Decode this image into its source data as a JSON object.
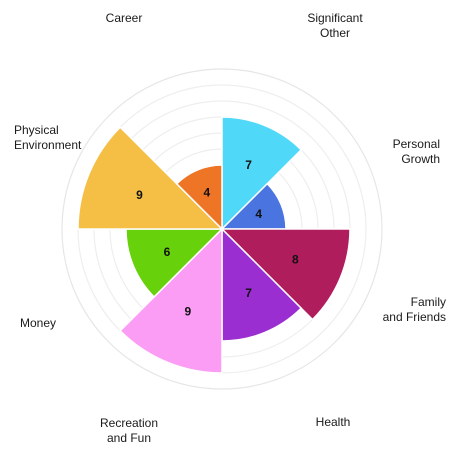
{
  "chart_data": {
    "type": "polar-area",
    "scale_max": 10,
    "gridlines": 10,
    "grid": true,
    "sectors": [
      {
        "label": [
          "Significant",
          "Other"
        ],
        "value": 7,
        "color": "#4fd8f7"
      },
      {
        "label": [
          "Personal",
          "Growth"
        ],
        "value": 4,
        "color": "#4a74e0"
      },
      {
        "label": [
          "Family",
          "and Friends"
        ],
        "value": 8,
        "color": "#b01d5c"
      },
      {
        "label": [
          "Health"
        ],
        "value": 7,
        "color": "#9b2ed1"
      },
      {
        "label": [
          "Recreation",
          "and Fun"
        ],
        "value": 9,
        "color": "#fb9df4"
      },
      {
        "label": [
          "Money"
        ],
        "value": 6,
        "color": "#67d10b"
      },
      {
        "label": [
          "Physical",
          "Environment"
        ],
        "value": 9,
        "color": "#f5bf45"
      },
      {
        "label": [
          "Career"
        ],
        "value": 4,
        "color": "#ee7526"
      }
    ]
  }
}
